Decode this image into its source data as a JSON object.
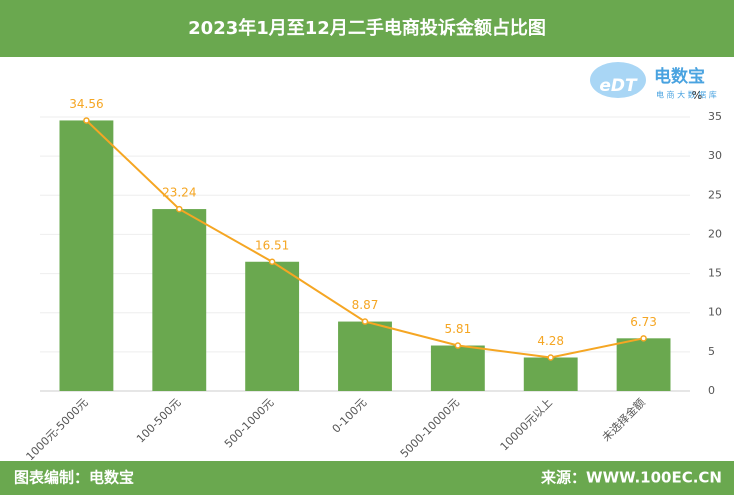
{
  "chart_data": {
    "type": "bar",
    "title": "2023年1月至12月二手电商投诉金额占比图",
    "categories": [
      "1000元-5000元",
      "100-500元",
      "500-1000元",
      "0-100元",
      "5000-10000元",
      "10000元以上",
      "未选择金额"
    ],
    "values": [
      34.56,
      23.24,
      16.51,
      8.87,
      5.81,
      4.28,
      6.73
    ],
    "color": "#6aa84f",
    "line_color": "#f5a623",
    "show_line": true,
    "y_unit": "%",
    "ylim": [
      0,
      35
    ],
    "yticks": [
      0,
      5,
      10,
      15,
      20,
      25,
      30,
      35
    ],
    "grid": true,
    "logo": {
      "mark": "eDT",
      "name": "电数宝",
      "tagline": "电 商 大 数 据 库"
    },
    "footer": {
      "left": "图表编制：电数宝",
      "right": "来源：WWW.100EC.CN"
    }
  }
}
